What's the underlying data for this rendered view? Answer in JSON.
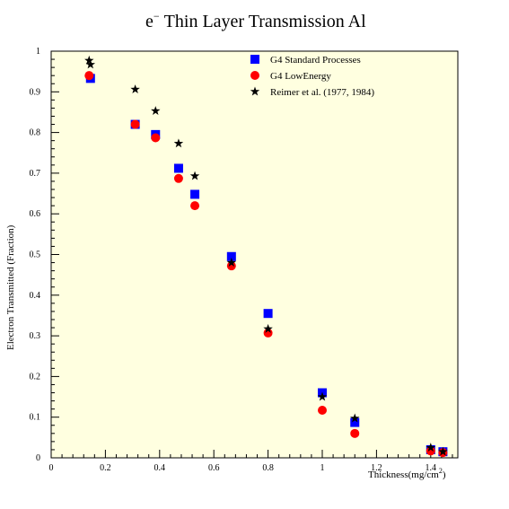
{
  "chart_data": {
    "type": "scatter",
    "title_main": "Thin Layer Transmission Al",
    "title_particle": "e",
    "title_sup": "−",
    "xlabel": "Thickness(mg/cm",
    "xlabel_sup": "2",
    "xlabel_end": ")",
    "ylabel": "Electron Transmitted (Fraction)",
    "xlim": [
      0,
      1.5
    ],
    "ylim": [
      0,
      1
    ],
    "background": "#ffffe0",
    "legend_position": "top-right",
    "xticks": [
      0,
      0.2,
      0.4,
      0.6,
      0.8,
      1,
      1.2,
      1.4
    ],
    "xtick_labels": [
      "0",
      "0.2",
      "0.4",
      "0.6",
      "0.8",
      "1",
      "1.2",
      "1.4"
    ],
    "yticks": [
      0,
      0.1,
      0.2,
      0.3,
      0.4,
      0.5,
      0.6,
      0.7,
      0.8,
      0.9,
      1
    ],
    "ytick_labels": [
      "0",
      "0.1",
      "0.2",
      "0.3",
      "0.4",
      "0.5",
      "0.6",
      "0.7",
      "0.8",
      "0.9",
      "1"
    ],
    "series": [
      {
        "name": "G4 Standard Processes",
        "marker": "square",
        "color": "#0000ff",
        "points": [
          [
            0.145,
            0.933
          ],
          [
            0.31,
            0.82
          ],
          [
            0.385,
            0.795
          ],
          [
            0.47,
            0.712
          ],
          [
            0.53,
            0.648
          ],
          [
            0.665,
            0.495
          ],
          [
            0.8,
            0.355
          ],
          [
            1.0,
            0.16
          ],
          [
            1.12,
            0.087
          ],
          [
            1.4,
            0.02
          ],
          [
            1.445,
            0.015
          ]
        ]
      },
      {
        "name": "G4 LowEnergy",
        "marker": "circle",
        "color": "#ff0000",
        "points": [
          [
            0.14,
            0.94
          ],
          [
            0.31,
            0.82
          ],
          [
            0.385,
            0.787
          ],
          [
            0.47,
            0.687
          ],
          [
            0.53,
            0.62
          ],
          [
            0.665,
            0.472
          ],
          [
            0.8,
            0.307
          ],
          [
            1.0,
            0.117
          ],
          [
            1.12,
            0.06
          ],
          [
            1.4,
            0.017
          ],
          [
            1.445,
            0.013
          ]
        ]
      },
      {
        "name": "Reimer et al. (1977, 1984)",
        "marker": "star",
        "color": "#000000",
        "points": [
          [
            0.14,
            0.977
          ],
          [
            0.145,
            0.967
          ],
          [
            0.31,
            0.906
          ],
          [
            0.385,
            0.853
          ],
          [
            0.47,
            0.773
          ],
          [
            0.53,
            0.693
          ],
          [
            0.665,
            0.48
          ],
          [
            0.8,
            0.317
          ],
          [
            1.0,
            0.15
          ],
          [
            1.12,
            0.097
          ],
          [
            1.4,
            0.025
          ],
          [
            1.445,
            0.015
          ]
        ]
      }
    ]
  }
}
